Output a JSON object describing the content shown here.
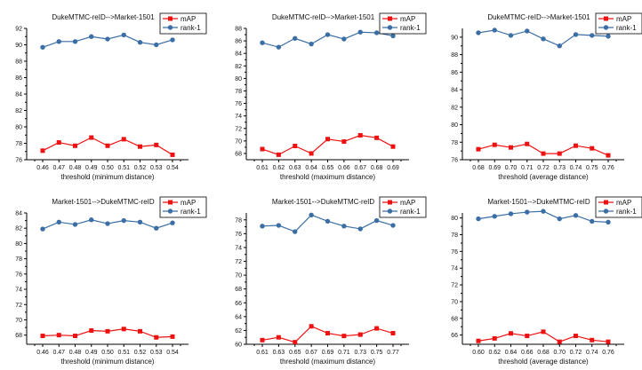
{
  "colors": {
    "mAP": "#ee1111",
    "rank1": "#3a6ea5"
  },
  "chart_data": [
    {
      "type": "line",
      "title": "DukeMTMC-reID-->Market-1501",
      "xlabel": "threshold (minimum distance)",
      "ylabel": "",
      "x": [
        "0.46",
        "0.47",
        "0.48",
        "0.49",
        "0.50",
        "0.51",
        "0.52",
        "0.53",
        "0.54"
      ],
      "ylim": [
        76,
        92
      ],
      "yticks": [
        76,
        78,
        80,
        82,
        84,
        86,
        88,
        90,
        92
      ],
      "legend": "top-right",
      "series": [
        {
          "name": "mAP",
          "values": [
            77.1,
            78.1,
            77.7,
            78.7,
            77.7,
            78.5,
            77.6,
            77.8,
            76.6
          ]
        },
        {
          "name": "rank-1",
          "values": [
            89.7,
            90.4,
            90.4,
            91.0,
            90.7,
            91.2,
            90.3,
            90.0,
            90.6
          ]
        }
      ]
    },
    {
      "type": "line",
      "title": "DukeMTMC-reID-->Market-1501",
      "xlabel": "threshold (maximum distance)",
      "ylabel": "",
      "x": [
        "0.61",
        "0.62",
        "0.63",
        "0.64",
        "0.65",
        "0.66",
        "0.67",
        "0.68",
        "0.69"
      ],
      "ylim": [
        67,
        88
      ],
      "yticks": [
        68,
        70,
        72,
        74,
        76,
        78,
        80,
        82,
        84,
        86,
        88
      ],
      "legend": "top-right",
      "series": [
        {
          "name": "mAP",
          "values": [
            68.7,
            67.8,
            69.2,
            68.0,
            70.3,
            69.9,
            70.9,
            70.5,
            69.1
          ]
        },
        {
          "name": "rank-1",
          "values": [
            85.7,
            85.0,
            86.4,
            85.5,
            87.0,
            86.3,
            87.4,
            87.3,
            86.8
          ]
        }
      ]
    },
    {
      "type": "line",
      "title": "DukeMTMC-reID-->Market-1501",
      "xlabel": "threshold (average distance)",
      "ylabel": "",
      "x": [
        "0.68",
        "0.69",
        "0.70",
        "0.71",
        "0.72",
        "0.73",
        "0.74",
        "0.75",
        "0.76"
      ],
      "ylim": [
        76,
        91
      ],
      "yticks": [
        76,
        78,
        80,
        82,
        84,
        86,
        88,
        90
      ],
      "legend": "top-right",
      "series": [
        {
          "name": "mAP",
          "values": [
            77.2,
            77.7,
            77.4,
            77.8,
            76.7,
            76.7,
            77.6,
            77.3,
            76.5
          ]
        },
        {
          "name": "rank-1",
          "values": [
            90.5,
            90.8,
            90.2,
            90.7,
            89.8,
            89.0,
            90.3,
            90.2,
            90.1
          ]
        }
      ]
    },
    {
      "type": "line",
      "title": "Market-1501-->DukeMTMC-reID",
      "xlabel": "threshold (minimum distance)",
      "ylabel": "",
      "x": [
        "0.46",
        "0.47",
        "0.48",
        "0.49",
        "0.50",
        "0.51",
        "0.52",
        "0.53",
        "0.54"
      ],
      "ylim": [
        66.8,
        84
      ],
      "yticks": [
        68,
        70,
        72,
        74,
        76,
        78,
        80,
        82,
        84
      ],
      "legend": "top-right",
      "series": [
        {
          "name": "mAP",
          "values": [
            67.9,
            68.0,
            67.9,
            68.6,
            68.5,
            68.8,
            68.5,
            67.7,
            67.8
          ]
        },
        {
          "name": "rank-1",
          "values": [
            81.9,
            82.8,
            82.5,
            83.1,
            82.6,
            83.0,
            82.8,
            82.0,
            82.7
          ]
        }
      ]
    },
    {
      "type": "line",
      "title": "Market-1501-->DukeMTMC-reID",
      "xlabel": "threshold (maximum distance)",
      "ylabel": "",
      "x": [
        "0.61",
        "0.63",
        "0.65",
        "0.67",
        "0.69",
        "0.71",
        "0.73",
        "0.75",
        "0.77"
      ],
      "ylim": [
        60,
        79
      ],
      "yticks": [
        60,
        62,
        64,
        66,
        68,
        70,
        72,
        74,
        76,
        78
      ],
      "legend": "top-right",
      "series": [
        {
          "name": "mAP",
          "values": [
            60.6,
            61.0,
            60.3,
            62.6,
            61.6,
            61.2,
            61.4,
            62.3,
            61.6
          ]
        },
        {
          "name": "rank-1",
          "values": [
            77.1,
            77.2,
            76.3,
            78.7,
            77.8,
            77.1,
            76.7,
            77.9,
            77.2
          ]
        }
      ]
    },
    {
      "type": "line",
      "title": "Market-1501-->DukeMTMC-reID",
      "xlabel": "threshold (average distance)",
      "ylabel": "",
      "x": [
        "0.60",
        "0.62",
        "0.64",
        "0.66",
        "0.68",
        "0.70",
        "0.72",
        "0.74",
        "0.76"
      ],
      "ylim": [
        64.9,
        80.6
      ],
      "yticks": [
        66,
        68,
        70,
        72,
        74,
        76,
        78,
        80
      ],
      "legend": "top-right",
      "series": [
        {
          "name": "mAP",
          "values": [
            65.3,
            65.6,
            66.2,
            65.9,
            66.4,
            65.2,
            65.9,
            65.4,
            65.2
          ]
        },
        {
          "name": "rank-1",
          "values": [
            79.9,
            80.2,
            80.5,
            80.7,
            80.8,
            79.9,
            80.3,
            79.6,
            79.5
          ]
        }
      ]
    }
  ]
}
